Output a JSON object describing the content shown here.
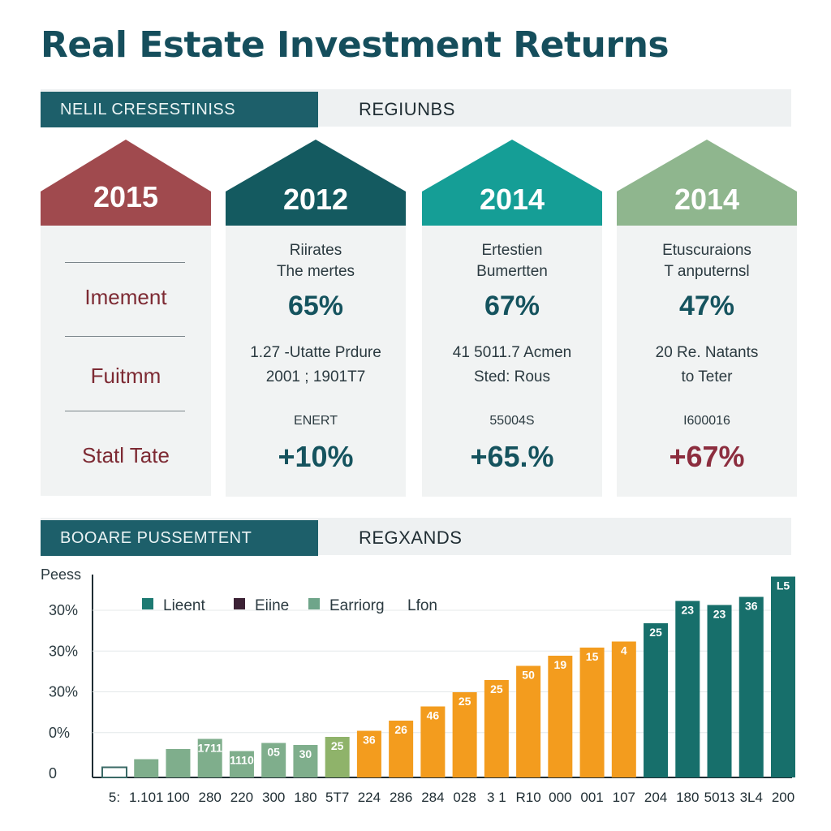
{
  "title": "Real Estate Investment Returns",
  "section1": {
    "tag": "NELIL CRESESTINISS",
    "label": "REGIUNBS"
  },
  "section2": {
    "tag": "BOOARE PUSSEMTENT",
    "label": "REGXANDS"
  },
  "left_panel": {
    "roof_year": "2015",
    "roof_color": "#a04a4e",
    "labels": [
      "Imement",
      "Fuitmm",
      "Statl Tate"
    ]
  },
  "columns": [
    {
      "year": "2012",
      "color": "#145a60",
      "line1": "Riirates",
      "line2": "The mertes",
      "percent": "65%",
      "detail1": "1.27 -Utatte Prdure",
      "detail2": "2001 ; 1901T7",
      "small": "ENERT",
      "change": "+10%",
      "change_color": "#15535e"
    },
    {
      "year": "2014",
      "color": "#159e96",
      "line1": "Ertestien",
      "line2": "Bumertten",
      "percent": "67%",
      "detail1": "41 5011.7 Acmen",
      "detail2": "Sted: Rous",
      "small": "55004S",
      "change": "+65.%",
      "change_color": "#15535e"
    },
    {
      "year": "2014",
      "color": "#8fb68e",
      "line1": "Etuscuraions",
      "line2": "T anputernsl",
      "percent": "47%",
      "detail1": "20 Re. Natants",
      "detail2": "to Teter",
      "small": "I600016",
      "change": "+67%",
      "change_color": "#8c2d3e"
    }
  ],
  "chart_data": {
    "type": "bar",
    "ylabel": "Peess",
    "y_ticks": [
      "0",
      "0%",
      "30%",
      "30%",
      "30%"
    ],
    "ylim": [
      0,
      100
    ],
    "legend_position": "top-left",
    "legend": [
      {
        "label": "Lieent",
        "color": "#1d7a72"
      },
      {
        "label": "Eiine",
        "color": "#3c2235"
      },
      {
        "label": "Earriorg",
        "color": "#6fa58a"
      },
      {
        "label": "Lfon",
        "color": ""
      }
    ],
    "categories": [
      "5:",
      "1.101",
      "100",
      "280",
      "220",
      "300",
      "180",
      "5T7",
      "224",
      "286",
      "284",
      "028",
      "3 1",
      "R10",
      "000",
      "001",
      "107",
      "204",
      "180",
      "5013",
      "3L4",
      "200"
    ],
    "values": [
      5,
      9,
      14,
      19,
      13,
      17,
      16,
      20,
      23,
      28,
      35,
      42,
      48,
      55,
      60,
      64,
      67,
      76,
      87,
      85,
      89,
      99
    ],
    "bar_labels": [
      "",
      "",
      "",
      "1711",
      "1110",
      "05",
      "30",
      "25",
      "36",
      "26",
      "46",
      "25",
      "25",
      "50",
      "19",
      "15",
      "4",
      "25",
      "23",
      "23",
      "36",
      "L5"
    ],
    "bar_colors": [
      "#ffffff",
      "#7fae8c",
      "#7fae8c",
      "#7fae8c",
      "#7fae8c",
      "#7fae8c",
      "#7fae8c",
      "#8fb36a",
      "#f39c1e",
      "#f39c1e",
      "#f39c1e",
      "#f39c1e",
      "#f39c1e",
      "#f39c1e",
      "#f39c1e",
      "#f39c1e",
      "#f39c1e",
      "#176f6b",
      "#176f6b",
      "#176f6b",
      "#176f6b",
      "#176f6b"
    ]
  }
}
